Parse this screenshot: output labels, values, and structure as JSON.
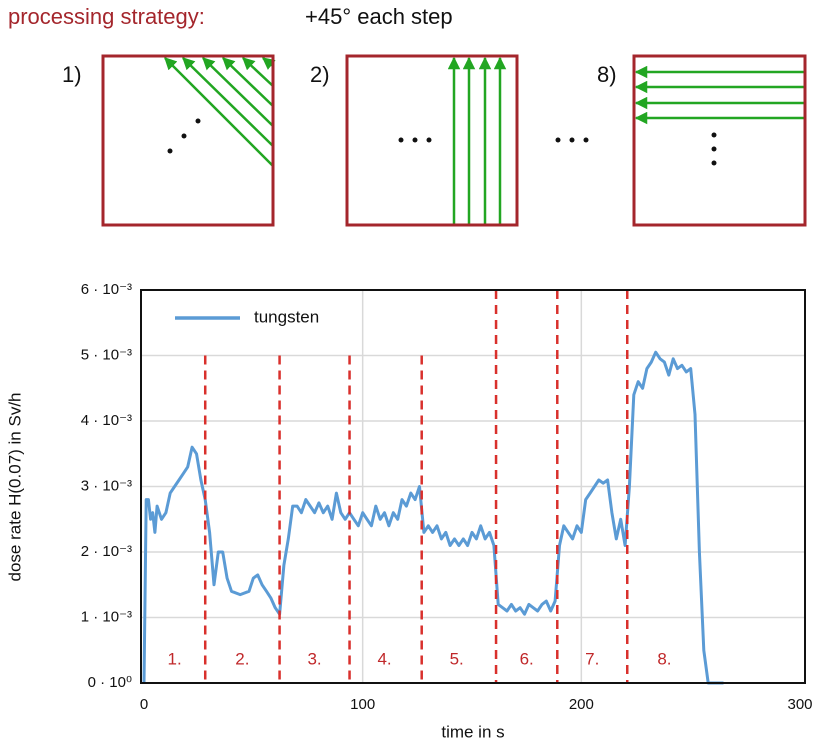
{
  "diagram": {
    "title_label": "processing strategy:",
    "title_text": "+45° each step",
    "steps": [
      "1)",
      "2)",
      "8)"
    ]
  },
  "chart_data": {
    "type": "line",
    "xlabel": "time in s",
    "ylabel": "dose rate H(0.07) in Sv/h",
    "xlim": [
      0,
      300
    ],
    "ylim": [
      0,
      0.006
    ],
    "xticks": [
      0,
      100,
      200,
      300
    ],
    "yticks": [
      {
        "value": 0,
        "label": "0 · 10⁰"
      },
      {
        "value": 0.001,
        "label": "1 · 10⁻³"
      },
      {
        "value": 0.002,
        "label": "2 · 10⁻³"
      },
      {
        "value": 0.003,
        "label": "3 · 10⁻³"
      },
      {
        "value": 0.004,
        "label": "4 · 10⁻³"
      },
      {
        "value": 0.005,
        "label": "5 · 10⁻³"
      },
      {
        "value": 0.006,
        "label": "6 · 10⁻³"
      }
    ],
    "grid": true,
    "legend": "upper left",
    "x": [
      0,
      1,
      2,
      3,
      4,
      5,
      6,
      8,
      10,
      12,
      14,
      16,
      18,
      20,
      22,
      24,
      26,
      28,
      30,
      32,
      34,
      36,
      38,
      40,
      44,
      48,
      50,
      52,
      54,
      56,
      58,
      60,
      62,
      64,
      66,
      68,
      70,
      72,
      74,
      76,
      78,
      80,
      82,
      84,
      86,
      88,
      90,
      92,
      94,
      96,
      98,
      100,
      102,
      104,
      106,
      108,
      110,
      112,
      114,
      116,
      118,
      120,
      122,
      124,
      126,
      128,
      130,
      132,
      134,
      136,
      138,
      140,
      142,
      144,
      146,
      148,
      150,
      152,
      154,
      156,
      158,
      160,
      162,
      164,
      166,
      168,
      170,
      172,
      174,
      176,
      178,
      180,
      182,
      184,
      186,
      188,
      190,
      192,
      194,
      196,
      198,
      200,
      202,
      204,
      206,
      208,
      210,
      212,
      214,
      216,
      218,
      220,
      222,
      224,
      226,
      228,
      230,
      232,
      234,
      236,
      238,
      240,
      242,
      244,
      246,
      248,
      250,
      252,
      254,
      256,
      258,
      262,
      265
    ],
    "series": [
      {
        "name": "tungsten",
        "color": "#5b9bd5",
        "values": [
          0,
          0.0028,
          0.0028,
          0.0025,
          0.0026,
          0.0023,
          0.0027,
          0.0025,
          0.0026,
          0.0029,
          0.003,
          0.0031,
          0.0032,
          0.0033,
          0.0036,
          0.0035,
          0.0031,
          0.0028,
          0.0023,
          0.0015,
          0.002,
          0.002,
          0.0016,
          0.0014,
          0.00135,
          0.0014,
          0.0016,
          0.00165,
          0.0015,
          0.0014,
          0.0013,
          0.00115,
          0.00105,
          0.0018,
          0.0022,
          0.0027,
          0.0027,
          0.0026,
          0.0028,
          0.0027,
          0.0026,
          0.00275,
          0.0026,
          0.0027,
          0.0025,
          0.0029,
          0.0026,
          0.0025,
          0.0026,
          0.0025,
          0.0024,
          0.0026,
          0.0025,
          0.0024,
          0.0027,
          0.0025,
          0.0026,
          0.0024,
          0.0026,
          0.0025,
          0.0028,
          0.0027,
          0.0029,
          0.0028,
          0.003,
          0.0023,
          0.0024,
          0.0023,
          0.0024,
          0.0022,
          0.0023,
          0.0021,
          0.0022,
          0.0021,
          0.0022,
          0.0021,
          0.0023,
          0.0022,
          0.0024,
          0.0022,
          0.0023,
          0.0021,
          0.0012,
          0.00115,
          0.0011,
          0.0012,
          0.0011,
          0.00115,
          0.00105,
          0.0012,
          0.00115,
          0.0011,
          0.0012,
          0.00125,
          0.0011,
          0.00125,
          0.0021,
          0.0024,
          0.0023,
          0.0022,
          0.0024,
          0.0023,
          0.0028,
          0.0029,
          0.003,
          0.0031,
          0.00305,
          0.0031,
          0.0026,
          0.0022,
          0.0025,
          0.0021,
          0.003,
          0.0044,
          0.0046,
          0.0045,
          0.0048,
          0.0049,
          0.00505,
          0.00495,
          0.0049,
          0.0047,
          0.00495,
          0.0048,
          0.00485,
          0.00475,
          0.0048,
          0.0041,
          0.002,
          0.0005,
          0,
          0,
          0
        ]
      }
    ],
    "dividers": [
      {
        "x": 28,
        "top": 0.005
      },
      {
        "x": 62,
        "top": 0.005
      },
      {
        "x": 94,
        "top": 0.005
      },
      {
        "x": 127,
        "top": 0.005
      },
      {
        "x": 161,
        "top": 0.006
      },
      {
        "x": 189,
        "top": 0.006
      },
      {
        "x": 221,
        "top": 0.006
      }
    ],
    "divider_color": "#d9302c",
    "annotations": [
      {
        "text": "1.",
        "x": 14,
        "y": 0.00035
      },
      {
        "text": "2.",
        "x": 45,
        "y": 0.00035
      },
      {
        "text": "3.",
        "x": 78,
        "y": 0.00035
      },
      {
        "text": "4.",
        "x": 110,
        "y": 0.00035
      },
      {
        "text": "5.",
        "x": 143,
        "y": 0.00035
      },
      {
        "text": "6.",
        "x": 175,
        "y": 0.00035
      },
      {
        "text": "7.",
        "x": 205,
        "y": 0.00035
      },
      {
        "text": "8.",
        "x": 238,
        "y": 0.00035
      }
    ]
  }
}
